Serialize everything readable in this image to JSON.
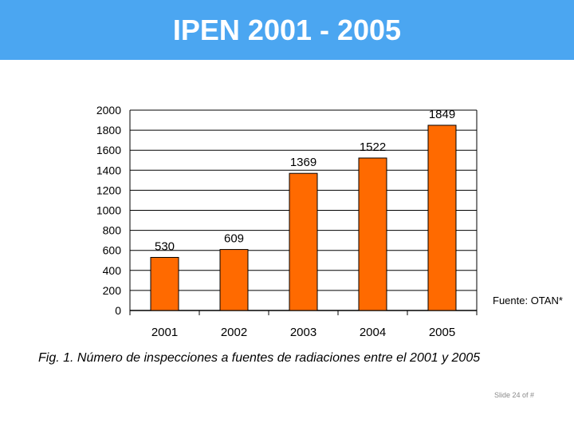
{
  "slide": {
    "title": "IPEN 2001 - 2005",
    "footer": "Slide 24 of #",
    "header_color": "#4ba6f1"
  },
  "figure": {
    "source": "Fuente: OTAN*",
    "caption": "Fig. 1.  Número de inspecciones a fuentes de radiaciones entre el 2001 y  2005"
  },
  "chart_data": {
    "type": "bar",
    "categories": [
      "2001",
      "2002",
      "2003",
      "2004",
      "2005"
    ],
    "values": [
      530,
      609,
      1369,
      1522,
      1849
    ],
    "data_labels": [
      "530",
      "609",
      "1369",
      "1522",
      "1849"
    ],
    "yticks": [
      "0",
      "200",
      "400",
      "600",
      "800",
      "1000",
      "1200",
      "1400",
      "1600",
      "1800",
      "2000"
    ],
    "ylim": [
      0,
      2000
    ],
    "grid": true,
    "bar_color": "#ff6a00",
    "bar_edge_color": "#000000",
    "title": "",
    "xlabel": "",
    "ylabel": ""
  }
}
